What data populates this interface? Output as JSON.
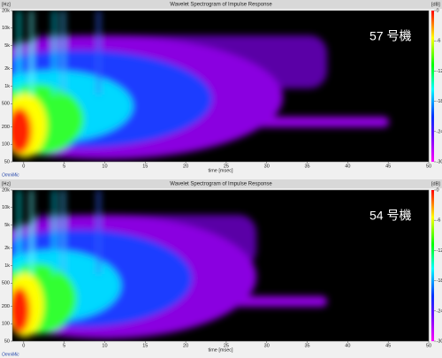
{
  "chart_data": [
    {
      "type": "heatmap",
      "title": "Wavelet Spectrogram of Impulse Response",
      "annotation": "57 号機",
      "x_label": "time [msec]",
      "y_unit": "[Hz]",
      "color_unit": "[dB]",
      "brand": "OmniMic",
      "xlim": [
        -1.4,
        50
      ],
      "xticks": [
        0,
        5,
        10,
        15,
        20,
        25,
        30,
        35,
        40,
        45,
        50
      ],
      "ylim": [
        50,
        20000
      ],
      "log_y": true,
      "yticks": [
        {
          "value": 20000,
          "label": "20k"
        },
        {
          "value": 10000,
          "label": "10k"
        },
        {
          "value": 5000,
          "label": "5k"
        },
        {
          "value": 2000,
          "label": "2k"
        },
        {
          "value": 1000,
          "label": "1k"
        },
        500,
        200,
        100,
        50
      ],
      "clim": [
        -30,
        0
      ],
      "cticks": [
        0,
        -6,
        -12,
        -18,
        -24,
        -30
      ]
    },
    {
      "type": "heatmap",
      "title": "Wavelet Spectrogram of Impulse Response",
      "annotation": "54 号機",
      "x_label": "time [msec]",
      "y_unit": "[Hz]",
      "color_unit": "[dB]",
      "brand": "OmniMic",
      "xlim": [
        -1.4,
        50
      ],
      "xticks": [
        0,
        5,
        10,
        15,
        20,
        25,
        30,
        35,
        40,
        45,
        50
      ],
      "ylim": [
        50,
        20000
      ],
      "log_y": true,
      "yticks": [
        {
          "value": 20000,
          "label": "20k"
        },
        {
          "value": 10000,
          "label": "10k"
        },
        {
          "value": 5000,
          "label": "5k"
        },
        {
          "value": 2000,
          "label": "2k"
        },
        {
          "value": 1000,
          "label": "1k"
        },
        500,
        200,
        100,
        50
      ],
      "clim": [
        -30,
        0
      ],
      "cticks": [
        0,
        -6,
        -12,
        -18,
        -24,
        -30
      ]
    }
  ]
}
